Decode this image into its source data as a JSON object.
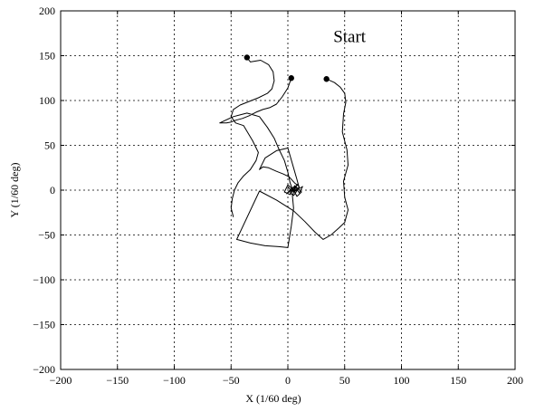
{
  "chart_data": {
    "type": "line",
    "title": "",
    "xlabel": "X (1/60 deg)",
    "ylabel": "Y (1/60 deg)",
    "xlim": [
      -200,
      200
    ],
    "ylim": [
      -200,
      200
    ],
    "xticks": [
      -200,
      -150,
      -100,
      -50,
      0,
      50,
      100,
      150,
      200
    ],
    "yticks": [
      -200,
      -150,
      -100,
      -50,
      0,
      50,
      100,
      150,
      200
    ],
    "xtick_labels": [
      "−200",
      "−150",
      "−100",
      "−50",
      "0",
      "50",
      "100",
      "150",
      "200"
    ],
    "ytick_labels": [
      "200",
      "150",
      "100",
      "50",
      "0",
      "−50",
      "−100",
      "−150",
      "−200"
    ],
    "grid": true,
    "grid_style": "dashed",
    "line_color": "#000000",
    "annotations": [
      {
        "text": "Start",
        "x": 40,
        "y": 165
      }
    ],
    "series": [
      {
        "x": [
          -36,
          -33,
          -24,
          -17,
          -13,
          -12,
          -14,
          -18,
          -26,
          -34,
          -42,
          -48,
          -50,
          -46,
          -39,
          -31,
          -26,
          -28,
          -33,
          -39,
          -44,
          -47,
          -49,
          -50,
          -48
        ],
        "y": [
          148,
          143,
          145,
          140,
          132,
          122,
          113,
          108,
          103,
          99,
          95,
          90,
          82,
          75,
          72,
          55,
          42,
          33,
          23,
          16,
          8,
          0,
          -10,
          -20,
          -30
        ],
        "start_marker": true
      },
      {
        "x": [
          3,
          0,
          -5,
          -10,
          -16,
          -22,
          -28,
          -34,
          -40,
          -46,
          -50,
          -54,
          -60,
          -48,
          -36,
          -25,
          -18,
          -12,
          -8,
          -3,
          0,
          2,
          5,
          8,
          10,
          6,
          1,
          -4,
          -10,
          -17,
          -22,
          -25,
          -20,
          -10,
          0,
          5,
          8,
          10
        ],
        "y": [
          125,
          114,
          104,
          96,
          92,
          90,
          87,
          83,
          80,
          78,
          76,
          75,
          75,
          82,
          86,
          82,
          70,
          58,
          46,
          33,
          20,
          8,
          -2,
          0,
          4,
          8,
          15,
          18,
          21,
          25,
          26,
          23,
          36,
          44,
          47,
          25,
          12,
          2
        ],
        "start_marker": true
      },
      {
        "x": [
          34,
          41,
          46,
          50,
          51,
          49,
          48,
          52,
          53,
          49,
          50,
          53,
          50,
          45,
          38,
          31,
          24,
          15,
          5,
          -10,
          -25,
          -45,
          -33,
          -20,
          -8,
          0,
          3,
          5,
          4,
          7,
          10,
          13,
          6,
          0,
          -3,
          2,
          6,
          9,
          3,
          -1,
          4,
          8,
          12,
          6,
          2,
          5,
          9,
          3,
          0
        ],
        "y": [
          124,
          120,
          115,
          108,
          98,
          85,
          65,
          45,
          28,
          10,
          -8,
          -22,
          -36,
          -42,
          -50,
          -55,
          -47,
          -35,
          -23,
          -11,
          -1,
          -55,
          -59,
          -62,
          -63,
          -64,
          -40,
          -20,
          -6,
          3,
          -3,
          4,
          -1,
          6,
          -2,
          -5,
          2,
          7,
          0,
          -4,
          3,
          -7,
          -2,
          5,
          -3,
          -6,
          1,
          -1,
          4
        ],
        "start_marker": true
      }
    ]
  }
}
